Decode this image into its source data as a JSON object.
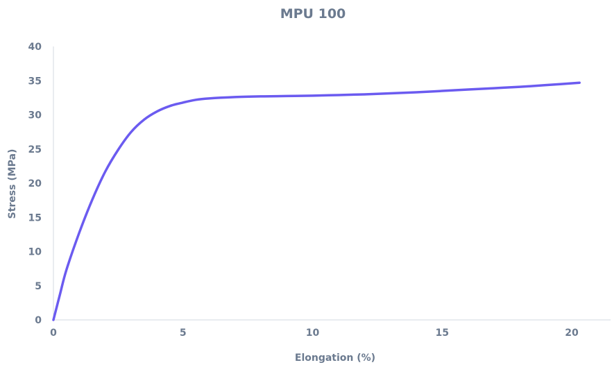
{
  "chart_data": {
    "type": "line",
    "title": "MPU 100",
    "xlabel": "Elongation (%)",
    "ylabel": "Stress (MPa)",
    "xlim": [
      0,
      21.5
    ],
    "ylim": [
      0,
      40
    ],
    "xticks": [
      0,
      5,
      10,
      15,
      20
    ],
    "yticks": [
      0,
      5,
      10,
      15,
      20,
      25,
      30,
      35,
      40
    ],
    "grid": false,
    "legend": "none",
    "series_color": "#6b5bf0",
    "series": [
      {
        "x": [
          0,
          0.25,
          0.5,
          1.0,
          1.5,
          2.0,
          2.5,
          3.0,
          3.5,
          4.0,
          4.5,
          5.0,
          5.5,
          6.0,
          7.0,
          8.0,
          9.0,
          10.0,
          11.0,
          12.0,
          13.0,
          14.0,
          15.0,
          16.0,
          17.0,
          18.0,
          19.0,
          20.3
        ],
        "y": [
          0,
          3.7,
          7.3,
          12.8,
          17.6,
          21.7,
          24.9,
          27.5,
          29.3,
          30.5,
          31.3,
          31.8,
          32.2,
          32.4,
          32.6,
          32.7,
          32.75,
          32.8,
          32.9,
          33.0,
          33.15,
          33.3,
          33.5,
          33.7,
          33.9,
          34.1,
          34.35,
          34.7
        ]
      }
    ]
  }
}
